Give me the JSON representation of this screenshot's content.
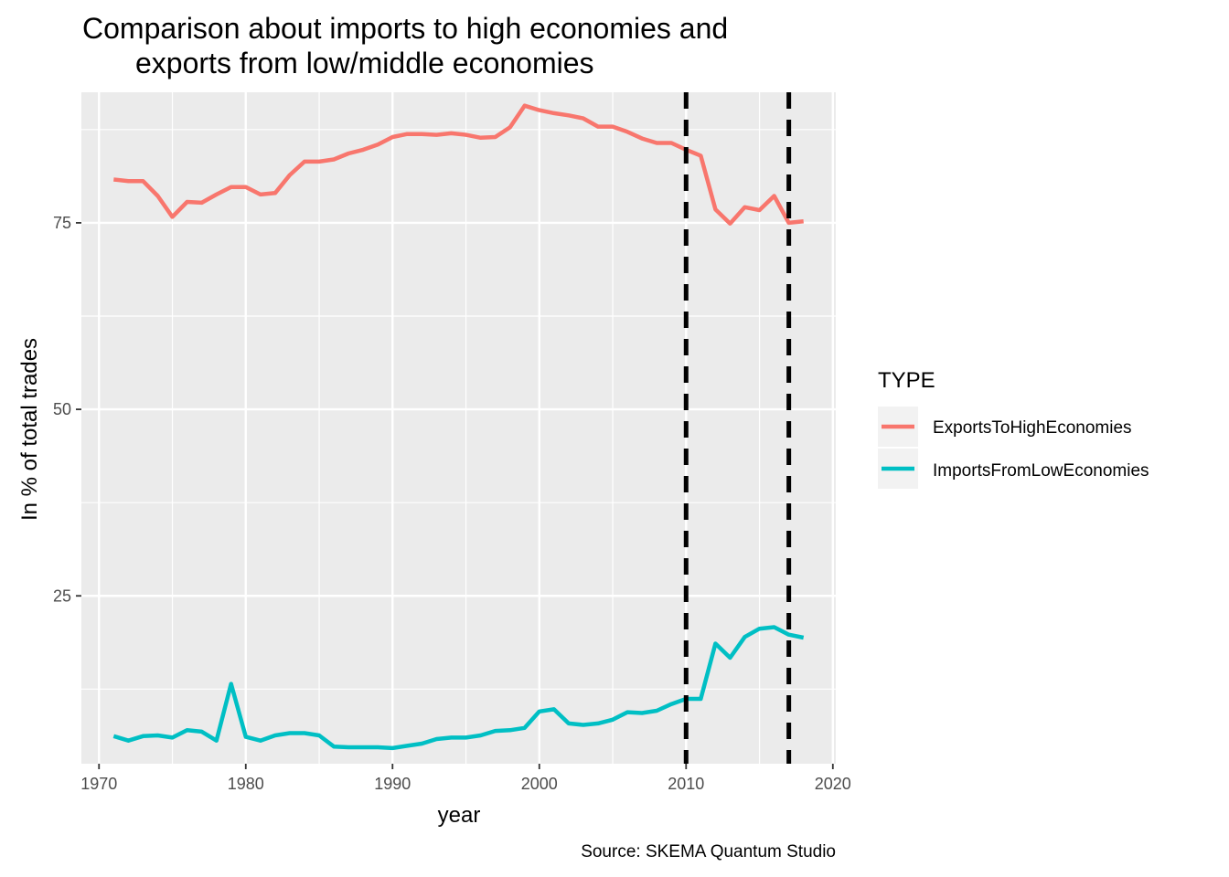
{
  "chart_data": {
    "type": "line",
    "title_line1": "Comparison about imports to high economies and",
    "title_line2": "exports from low/middle economies",
    "xlabel": "year",
    "ylabel": "In % of total trades",
    "caption": "Source: SKEMA Quantum Studio",
    "xlim": [
      1968.8,
      2020.2
    ],
    "ylim": [
      2.5,
      92.5
    ],
    "x_ticks": [
      "1970",
      "1980",
      "1990",
      "2000",
      "2010",
      "2020"
    ],
    "y_ticks": [
      "25",
      "50",
      "75"
    ],
    "grid": true,
    "legend": {
      "title": "TYPE",
      "position": "right"
    },
    "vlines": [
      2010,
      2017
    ],
    "x": [
      1971,
      1972,
      1973,
      1974,
      1975,
      1976,
      1977,
      1978,
      1979,
      1980,
      1981,
      1982,
      1983,
      1984,
      1985,
      1986,
      1987,
      1988,
      1989,
      1990,
      1991,
      1992,
      1993,
      1994,
      1995,
      1996,
      1997,
      1998,
      1999,
      2000,
      2001,
      2002,
      2003,
      2004,
      2005,
      2006,
      2007,
      2008,
      2009,
      2010,
      2011,
      2012,
      2013,
      2014,
      2015,
      2016,
      2017,
      2018
    ],
    "series": [
      {
        "name": "ExportsToHighEconomies",
        "color": "#F8766D",
        "values": [
          80.8,
          80.6,
          80.6,
          78.6,
          75.8,
          77.8,
          77.7,
          78.8,
          79.8,
          79.8,
          78.8,
          79.0,
          81.4,
          83.2,
          83.2,
          83.5,
          84.3,
          84.8,
          85.5,
          86.5,
          86.9,
          86.9,
          86.8,
          87.0,
          86.8,
          86.4,
          86.5,
          87.8,
          90.7,
          90.1,
          89.7,
          89.4,
          89.0,
          87.9,
          87.9,
          87.2,
          86.3,
          85.7,
          85.7,
          84.8,
          84.0,
          76.8,
          74.9,
          77.1,
          76.7,
          78.6,
          75.0,
          75.2
        ]
      },
      {
        "name": "ImportsFromLowEconomies",
        "color": "#00BFC4",
        "values": [
          6.2,
          5.6,
          6.2,
          6.3,
          6.0,
          7.0,
          6.8,
          5.6,
          13.2,
          6.1,
          5.6,
          6.3,
          6.6,
          6.6,
          6.3,
          4.8,
          4.7,
          4.7,
          4.7,
          4.6,
          4.9,
          5.2,
          5.8,
          6.0,
          6.0,
          6.3,
          6.9,
          7.0,
          7.3,
          9.5,
          9.8,
          7.9,
          7.7,
          7.9,
          8.4,
          9.4,
          9.3,
          9.6,
          10.5,
          11.2,
          11.2,
          18.6,
          16.7,
          19.5,
          20.6,
          20.8,
          19.8,
          19.4
        ]
      }
    ]
  }
}
